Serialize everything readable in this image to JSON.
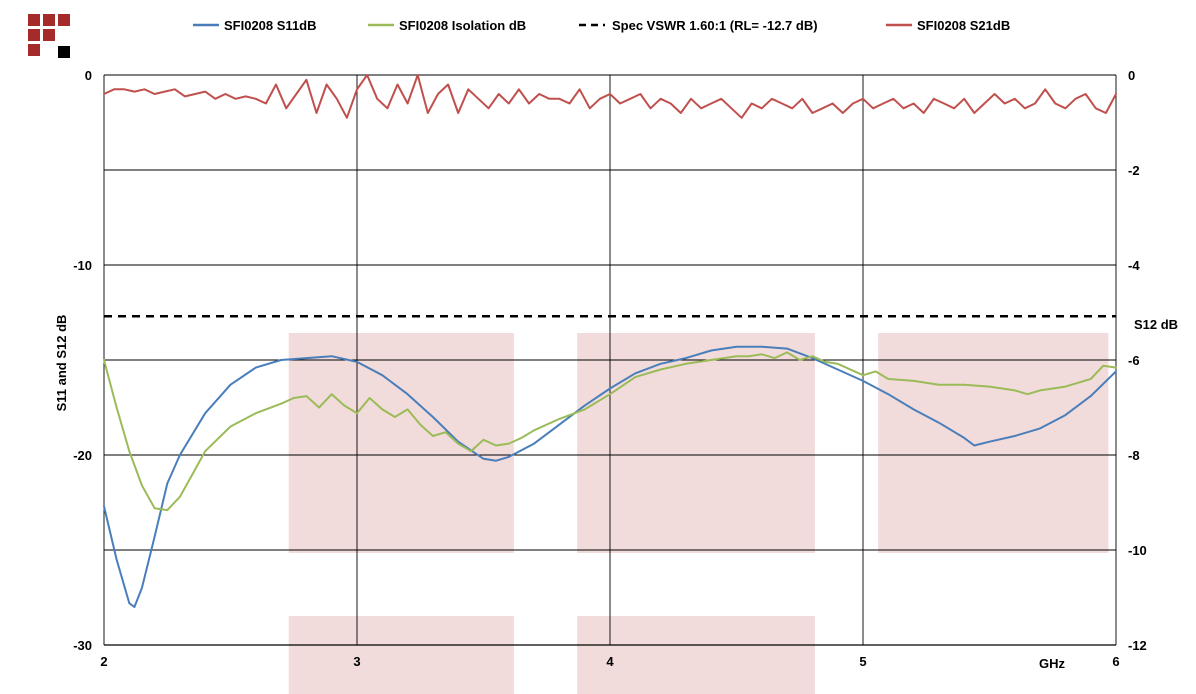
{
  "colors": {
    "s11": "#4a7ebb",
    "isolation": "#9bbb59",
    "spec": "#000000",
    "s21": "#c0504d",
    "band": "#f2dcdb",
    "logo": "#a52a2a"
  },
  "chart_data": {
    "type": "line",
    "xlabel": "GHz",
    "ylabel": "S11 and S12 dB",
    "y2label": "S12 dB",
    "xlim": [
      2,
      6
    ],
    "ylim": [
      -30,
      0
    ],
    "y2lim": [
      -12,
      0
    ],
    "grid": true,
    "legend_position": "top",
    "x_ticks": [
      "2",
      "3",
      "4",
      "5",
      "6"
    ],
    "y_ticks": [
      "0",
      "-10",
      "-20",
      "-30"
    ],
    "y2_ticks": [
      "0",
      "-2",
      "-4",
      "-6",
      "-8",
      "-10",
      "-12"
    ],
    "shaded_bands_ghz": [
      [
        2.73,
        3.62
      ],
      [
        3.87,
        4.81
      ],
      [
        5.06,
        5.97
      ]
    ],
    "series": [
      {
        "name": "SFI0208 S11dB",
        "axis": "left",
        "style": "solid",
        "x": [
          2.0,
          2.05,
          2.1,
          2.12,
          2.15,
          2.2,
          2.25,
          2.3,
          2.4,
          2.5,
          2.6,
          2.7,
          2.8,
          2.9,
          3.0,
          3.1,
          3.2,
          3.3,
          3.4,
          3.5,
          3.55,
          3.6,
          3.7,
          3.8,
          3.9,
          4.0,
          4.1,
          4.2,
          4.3,
          4.4,
          4.5,
          4.6,
          4.7,
          4.8,
          4.9,
          5.0,
          5.1,
          5.2,
          5.3,
          5.4,
          5.44,
          5.5,
          5.6,
          5.7,
          5.8,
          5.9,
          6.0
        ],
        "values": [
          -22.7,
          -25.5,
          -27.8,
          -28.0,
          -27.0,
          -24.3,
          -21.5,
          -20.0,
          -17.8,
          -16.3,
          -15.4,
          -15.0,
          -14.9,
          -14.8,
          -15.1,
          -15.8,
          -16.8,
          -18.0,
          -19.3,
          -20.2,
          -20.3,
          -20.1,
          -19.4,
          -18.4,
          -17.4,
          -16.5,
          -15.7,
          -15.2,
          -14.9,
          -14.5,
          -14.3,
          -14.3,
          -14.4,
          -14.9,
          -15.5,
          -16.1,
          -16.8,
          -17.6,
          -18.3,
          -19.1,
          -19.5,
          -19.3,
          -19.0,
          -18.6,
          -17.9,
          -16.9,
          -15.6
        ]
      },
      {
        "name": "SFI0208 Isolation dB",
        "axis": "left",
        "style": "solid",
        "x": [
          2.0,
          2.05,
          2.1,
          2.15,
          2.2,
          2.25,
          2.3,
          2.35,
          2.4,
          2.5,
          2.6,
          2.7,
          2.75,
          2.8,
          2.85,
          2.9,
          2.95,
          3.0,
          3.05,
          3.1,
          3.15,
          3.2,
          3.25,
          3.3,
          3.35,
          3.4,
          3.45,
          3.5,
          3.55,
          3.6,
          3.65,
          3.7,
          3.8,
          3.9,
          4.0,
          4.1,
          4.2,
          4.3,
          4.4,
          4.5,
          4.55,
          4.6,
          4.65,
          4.7,
          4.75,
          4.8,
          4.85,
          4.9,
          5.0,
          5.05,
          5.1,
          5.2,
          5.3,
          5.4,
          5.5,
          5.6,
          5.65,
          5.7,
          5.8,
          5.9,
          5.95,
          6.0
        ],
        "values": [
          -15.0,
          -17.5,
          -19.8,
          -21.6,
          -22.8,
          -22.9,
          -22.2,
          -21.0,
          -19.8,
          -18.5,
          -17.8,
          -17.3,
          -17.0,
          -16.9,
          -17.5,
          -16.8,
          -17.4,
          -17.8,
          -17.0,
          -17.6,
          -18.0,
          -17.6,
          -18.4,
          -19.0,
          -18.8,
          -19.4,
          -19.8,
          -19.2,
          -19.5,
          -19.4,
          -19.1,
          -18.7,
          -18.1,
          -17.6,
          -16.8,
          -15.9,
          -15.5,
          -15.2,
          -15.0,
          -14.8,
          -14.8,
          -14.7,
          -14.9,
          -14.6,
          -15.0,
          -14.8,
          -15.1,
          -15.2,
          -15.8,
          -15.6,
          -16.0,
          -16.1,
          -16.3,
          -16.3,
          -16.4,
          -16.6,
          -16.8,
          -16.6,
          -16.4,
          -16.0,
          -15.3,
          -15.4
        ]
      },
      {
        "name": "Spec VSWR 1.60:1 (RL= -12.7 dB)",
        "axis": "left",
        "style": "dashed",
        "x": [
          2.0,
          6.0
        ],
        "values": [
          -12.7,
          -12.7
        ]
      },
      {
        "name": "SFI0208 S21dB",
        "axis": "right",
        "style": "solid",
        "x": [
          2.0,
          2.04,
          2.08,
          2.12,
          2.16,
          2.2,
          2.24,
          2.28,
          2.32,
          2.36,
          2.4,
          2.44,
          2.48,
          2.52,
          2.56,
          2.6,
          2.64,
          2.68,
          2.72,
          2.76,
          2.8,
          2.84,
          2.88,
          2.92,
          2.96,
          3.0,
          3.04,
          3.08,
          3.12,
          3.16,
          3.2,
          3.24,
          3.28,
          3.32,
          3.36,
          3.4,
          3.44,
          3.48,
          3.52,
          3.56,
          3.6,
          3.64,
          3.68,
          3.72,
          3.76,
          3.8,
          3.84,
          3.88,
          3.92,
          3.96,
          4.0,
          4.04,
          4.08,
          4.12,
          4.16,
          4.2,
          4.24,
          4.28,
          4.32,
          4.36,
          4.4,
          4.44,
          4.48,
          4.52,
          4.56,
          4.6,
          4.64,
          4.68,
          4.72,
          4.76,
          4.8,
          4.84,
          4.88,
          4.92,
          4.96,
          5.0,
          5.04,
          5.08,
          5.12,
          5.16,
          5.2,
          5.24,
          5.28,
          5.32,
          5.36,
          5.4,
          5.44,
          5.48,
          5.52,
          5.56,
          5.6,
          5.64,
          5.68,
          5.72,
          5.76,
          5.8,
          5.84,
          5.88,
          5.92,
          5.96,
          6.0
        ],
        "values": [
          -0.4,
          -0.3,
          -0.3,
          -0.35,
          -0.3,
          -0.4,
          -0.35,
          -0.3,
          -0.45,
          -0.4,
          -0.35,
          -0.5,
          -0.4,
          -0.5,
          -0.45,
          -0.5,
          -0.6,
          -0.2,
          -0.7,
          -0.4,
          -0.1,
          -0.8,
          -0.2,
          -0.5,
          -0.9,
          -0.3,
          0.0,
          -0.5,
          -0.7,
          -0.2,
          -0.6,
          0.0,
          -0.8,
          -0.4,
          -0.2,
          -0.8,
          -0.3,
          -0.5,
          -0.7,
          -0.4,
          -0.6,
          -0.3,
          -0.6,
          -0.4,
          -0.5,
          -0.5,
          -0.6,
          -0.3,
          -0.7,
          -0.5,
          -0.4,
          -0.6,
          -0.5,
          -0.4,
          -0.7,
          -0.5,
          -0.6,
          -0.8,
          -0.5,
          -0.7,
          -0.6,
          -0.5,
          -0.7,
          -0.9,
          -0.6,
          -0.7,
          -0.5,
          -0.6,
          -0.7,
          -0.5,
          -0.8,
          -0.7,
          -0.6,
          -0.8,
          -0.6,
          -0.5,
          -0.7,
          -0.6,
          -0.5,
          -0.7,
          -0.6,
          -0.8,
          -0.5,
          -0.6,
          -0.7,
          -0.5,
          -0.8,
          -0.6,
          -0.4,
          -0.6,
          -0.5,
          -0.7,
          -0.6,
          -0.3,
          -0.6,
          -0.7,
          -0.5,
          -0.4,
          -0.7,
          -0.8,
          -0.4
        ]
      }
    ]
  }
}
